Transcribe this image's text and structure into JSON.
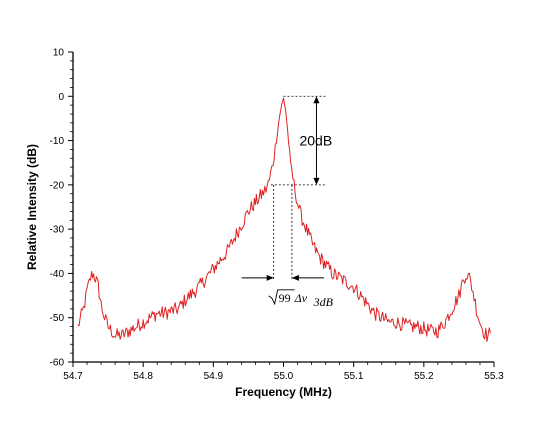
{
  "chart_data": {
    "type": "line",
    "title": "",
    "xlabel": "Frequency (MHz)",
    "ylabel": "Relative Intensity (dB)",
    "xlim": [
      54.7,
      55.3
    ],
    "ylim": [
      -60,
      10
    ],
    "xticks": [
      54.7,
      54.8,
      54.9,
      55.0,
      55.1,
      55.2,
      55.3
    ],
    "xtick_labels": [
      "54.7",
      "54.8",
      "54.9",
      "55.0",
      "55.1",
      "55.2",
      "55.3"
    ],
    "yticks": [
      10,
      0,
      -10,
      -20,
      -30,
      -40,
      -50,
      -60
    ],
    "ytick_labels": [
      "10",
      "0",
      "-10",
      "-20",
      "-30",
      "-40",
      "-50",
      "-60"
    ],
    "grid": false,
    "legend": false,
    "series": [
      {
        "color": "#dd2222",
        "x": [
          54.707,
          54.715,
          54.72,
          54.725,
          54.728,
          54.732,
          54.736,
          54.74,
          54.745,
          54.75,
          54.755,
          54.76,
          54.77,
          54.78,
          54.79,
          54.8,
          54.81,
          54.82,
          54.83,
          54.84,
          54.85,
          54.86,
          54.87,
          54.88,
          54.89,
          54.9,
          54.91,
          54.92,
          54.93,
          54.94,
          54.95,
          54.96,
          54.97,
          54.975,
          54.98,
          54.985,
          54.99,
          54.993,
          54.996,
          55.0,
          55.003,
          55.006,
          55.01,
          55.015,
          55.02,
          55.025,
          55.03,
          55.04,
          55.05,
          55.06,
          55.07,
          55.08,
          55.09,
          55.1,
          55.11,
          55.12,
          55.13,
          55.14,
          55.15,
          55.16,
          55.17,
          55.18,
          55.19,
          55.2,
          55.21,
          55.22,
          55.23,
          55.24,
          55.25,
          55.255,
          55.26,
          55.265,
          55.27,
          55.275,
          55.28,
          55.285,
          55.29,
          55.295
        ],
        "y": [
          -52,
          -48,
          -44,
          -41,
          -40,
          -41,
          -43,
          -47,
          -50,
          -52,
          -53,
          -54,
          -54,
          -53,
          -52,
          -51,
          -50,
          -49,
          -49,
          -48.5,
          -48,
          -46,
          -44.5,
          -43,
          -41,
          -39,
          -37,
          -35,
          -32,
          -29,
          -26,
          -24,
          -22,
          -21,
          -19,
          -15,
          -10,
          -6,
          -3,
          -0.5,
          -3,
          -8,
          -15,
          -20,
          -24,
          -27,
          -29,
          -33,
          -36,
          -38,
          -40,
          -41,
          -42,
          -43,
          -45,
          -47,
          -49,
          -50,
          -51,
          -51,
          -51.5,
          -52,
          -52,
          -52.5,
          -53,
          -53,
          -51,
          -48,
          -45,
          -42,
          -40,
          -41,
          -44,
          -48,
          -51,
          -53,
          -54,
          -53.5
        ]
      }
    ],
    "annotations": {
      "db_label": "20dB",
      "width_label_root": "99",
      "width_label_delta": "Δν",
      "width_label_sub": "3dB",
      "peak_level": 0,
      "lower_level": -20,
      "arrow_x": 55.047,
      "hline_end_x": 55.062,
      "width_x1": 54.986,
      "width_x2": 55.012
    }
  }
}
